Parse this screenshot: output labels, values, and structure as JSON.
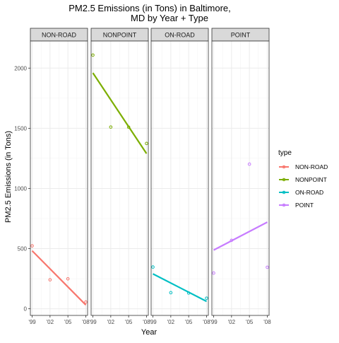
{
  "chart_data": {
    "type": "scatter",
    "title_lines": [
      "PM2.5 Emissions (in Tons) in Baltimore,",
      "MD by Year + Type"
    ],
    "xlabel": "Year",
    "ylabel": "PM2.5 Emissions (in Tons)",
    "x": [
      1999,
      2002,
      2005,
      2008
    ],
    "x_tick_labels": [
      "'99",
      "'02",
      "'05",
      "'08"
    ],
    "xlim": [
      1998.7,
      2008.3
    ],
    "ylim": [
      -55,
      2225
    ],
    "y_ticks": [
      0,
      500,
      1000,
      1500,
      2000
    ],
    "y_tick_labels": [
      "0",
      "500",
      "1000",
      "1500",
      "2000"
    ],
    "grid": true,
    "legend": {
      "title": "type",
      "placement": "right"
    },
    "panels": [
      "NON-ROAD",
      "NONPOINT",
      "ON-ROAD",
      "POINT"
    ],
    "series": [
      {
        "name": "NON-ROAD",
        "color": "#F8766D",
        "values": [
          523,
          241,
          249,
          56
        ],
        "trend": [
          482,
          332,
          182,
          32
        ]
      },
      {
        "name": "NONPOINT",
        "color": "#7CAE00",
        "values": [
          2108,
          1510,
          1509,
          1374
        ],
        "trend": [
          1960,
          1740,
          1520,
          1290
        ]
      },
      {
        "name": "ON-ROAD",
        "color": "#00BFC4",
        "values": [
          347,
          134,
          131,
          88
        ],
        "trend": [
          290,
          215,
          140,
          62
        ]
      },
      {
        "name": "POINT",
        "color": "#C77CFF",
        "values": [
          297,
          569,
          1202,
          345
        ],
        "trend": [
          488,
          565,
          642,
          720
        ]
      }
    ]
  }
}
